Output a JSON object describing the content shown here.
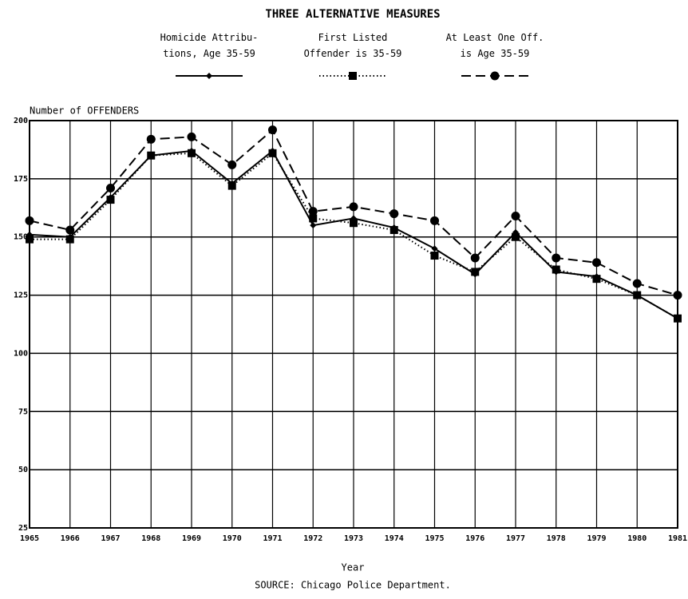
{
  "chart_data": {
    "type": "line",
    "title": "THREE ALTERNATIVE MEASURES",
    "ylabel": "Number of OFFENDERS",
    "xlabel": "Year",
    "source": "SOURCE:  Chicago Police Department.",
    "categories": [
      "1965",
      "1966",
      "1967",
      "1968",
      "1969",
      "1970",
      "1971",
      "1972",
      "1973",
      "1974",
      "1975",
      "1976",
      "1977",
      "1978",
      "1979",
      "1980",
      "1981"
    ],
    "series": [
      {
        "name": "Homicide Attribu-\ntions, Age 35-59",
        "color": "#000000",
        "linestyle": "solid",
        "marker": "diamond",
        "values": [
          151,
          150,
          167,
          185,
          187,
          173,
          187,
          155,
          158,
          154,
          145,
          134,
          152,
          135,
          133,
          125,
          115
        ]
      },
      {
        "name": "First Listed\nOffender is 35-59",
        "color": "#000000",
        "linestyle": "dotted",
        "marker": "square",
        "values": [
          149,
          149,
          166,
          185,
          186,
          172,
          186,
          158,
          156,
          153,
          142,
          135,
          150,
          136,
          132,
          125,
          115
        ]
      },
      {
        "name": "At Least One Off.\nis Age 35-59",
        "color": "#000000",
        "linestyle": "dashed",
        "marker": "circle",
        "values": [
          157,
          153,
          171,
          192,
          193,
          181,
          196,
          161,
          163,
          160,
          157,
          141,
          159,
          141,
          139,
          130,
          125
        ]
      }
    ],
    "ylim": [
      25,
      200
    ],
    "yticks": [
      25,
      50,
      75,
      100,
      125,
      150,
      175,
      200
    ],
    "grid": true
  }
}
